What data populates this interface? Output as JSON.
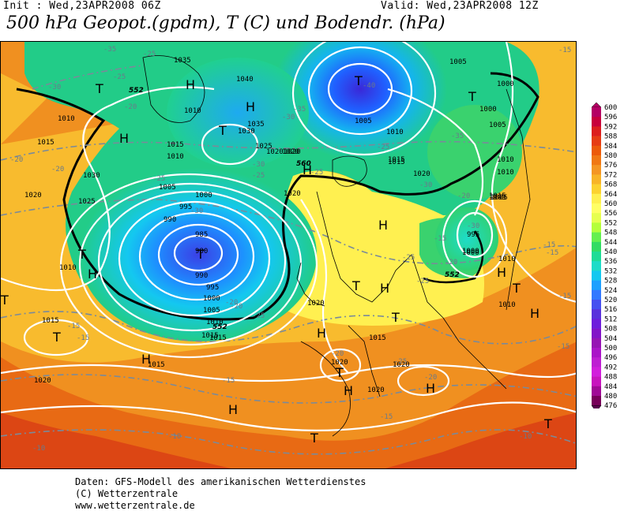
{
  "header": {
    "init": "Init : Wed,23APR2008 06Z",
    "valid": "Valid: Wed,23APR2008 12Z",
    "title": "500 hPa Geopot.(gpdm), T (C) und Bodendr. (hPa)"
  },
  "footer": {
    "line1": "Daten: GFS-Modell des amerikanischen Wetterdienstes",
    "line2": "(C) Wetterzentrale",
    "line3": "www.wetterzentrale.de"
  },
  "legend": {
    "levels": [
      "600",
      "596",
      "592",
      "588",
      "584",
      "580",
      "576",
      "572",
      "568",
      "564",
      "560",
      "556",
      "552",
      "548",
      "544",
      "540",
      "536",
      "532",
      "528",
      "524",
      "520",
      "516",
      "512",
      "508",
      "504",
      "500",
      "496",
      "492",
      "488",
      "484",
      "480",
      "476"
    ],
    "colors": [
      "#b40064",
      "#c8003c",
      "#dc1e1e",
      "#e63c14",
      "#ec5a0a",
      "#f07814",
      "#f49624",
      "#f8b428",
      "#fcd230",
      "#fff050",
      "#ffff64",
      "#e6ff50",
      "#b4ff3c",
      "#64f050",
      "#32dc64",
      "#1edc96",
      "#1edcc8",
      "#14c8f0",
      "#1ea0ff",
      "#3278ff",
      "#4650f0",
      "#5a32dc",
      "#6e1edc",
      "#8214c8",
      "#9614b4",
      "#aa14c8",
      "#be1ed2",
      "#d21edc",
      "#c814be",
      "#a00a96",
      "#78005a"
    ]
  },
  "map": {
    "fields": {
      "low_core": "#3a40e6",
      "low_mid": "#1e8cff",
      "cyan": "#14c8f0",
      "aqua": "#1edcc8",
      "green": "#22cc88",
      "lgreen": "#3ad26e",
      "yellow": "#fff050",
      "lyellow": "#ffff64",
      "gold": "#f8c030",
      "orange": "#f09020",
      "dorange": "#e86a14",
      "red": "#dc4614"
    },
    "labels_H": [
      {
        "t": "H",
        "c": "high"
      },
      {
        "t": "H",
        "c": "high"
      },
      {
        "t": "H",
        "c": "high"
      },
      {
        "t": "H",
        "c": "high"
      },
      {
        "t": "H",
        "c": "high"
      },
      {
        "t": "H",
        "c": "high"
      },
      {
        "t": "H",
        "c": "high"
      },
      {
        "t": "H",
        "c": "high"
      },
      {
        "t": "H",
        "c": "high"
      },
      {
        "t": "H",
        "c": "high"
      },
      {
        "t": "H",
        "c": "high"
      },
      {
        "t": "H",
        "c": "high"
      },
      {
        "t": "H",
        "c": "high"
      },
      {
        "t": "H",
        "c": "high"
      }
    ],
    "labels_T": [
      "T",
      "T",
      "T",
      "T",
      "T",
      "T",
      "T",
      "T",
      "T",
      "T",
      "T",
      "T",
      "T",
      "T"
    ],
    "isobars": [
      "1035",
      "1040",
      "1035",
      "1030",
      "1025",
      "1020",
      "1015",
      "1010",
      "1005",
      "1000",
      "995",
      "990",
      "985",
      "980",
      "990",
      "995",
      "1000",
      "1005",
      "1010",
      "1015",
      "1020",
      "1025",
      "1030",
      "1010",
      "1015",
      "1020",
      "1010",
      "1015",
      "1020",
      "1005",
      "1010",
      "1005",
      "1000",
      "1000",
      "1005",
      "1010",
      "1010",
      "1015",
      "1020",
      "1015",
      "1010",
      "1005",
      "1000",
      "995",
      "1020",
      "1015",
      "1020",
      "1015",
      "1020",
      "1020",
      "1020",
      "1015",
      "1010",
      "1005",
      "1020",
      "1015",
      "1010",
      "1000"
    ],
    "temps": [
      "-35",
      "-25",
      "-30",
      "-25",
      "-20",
      "-30",
      "-40",
      "-35",
      "-30",
      "-25",
      "-30",
      "-20",
      "-20",
      "-20",
      "-25",
      "-25",
      "-25",
      "-30",
      "-25",
      "-35",
      "-25",
      "-20",
      "-30",
      "-20",
      "-15",
      "-15",
      "-15",
      "-25",
      "-25",
      "-15",
      "-20",
      "-15",
      "-20",
      "-20",
      "-15",
      "-15",
      "-15",
      "-10",
      "-10",
      "-15",
      "-10",
      "-15"
    ],
    "g552": [
      "552",
      "552",
      "552"
    ],
    "g560": [
      "560"
    ]
  }
}
